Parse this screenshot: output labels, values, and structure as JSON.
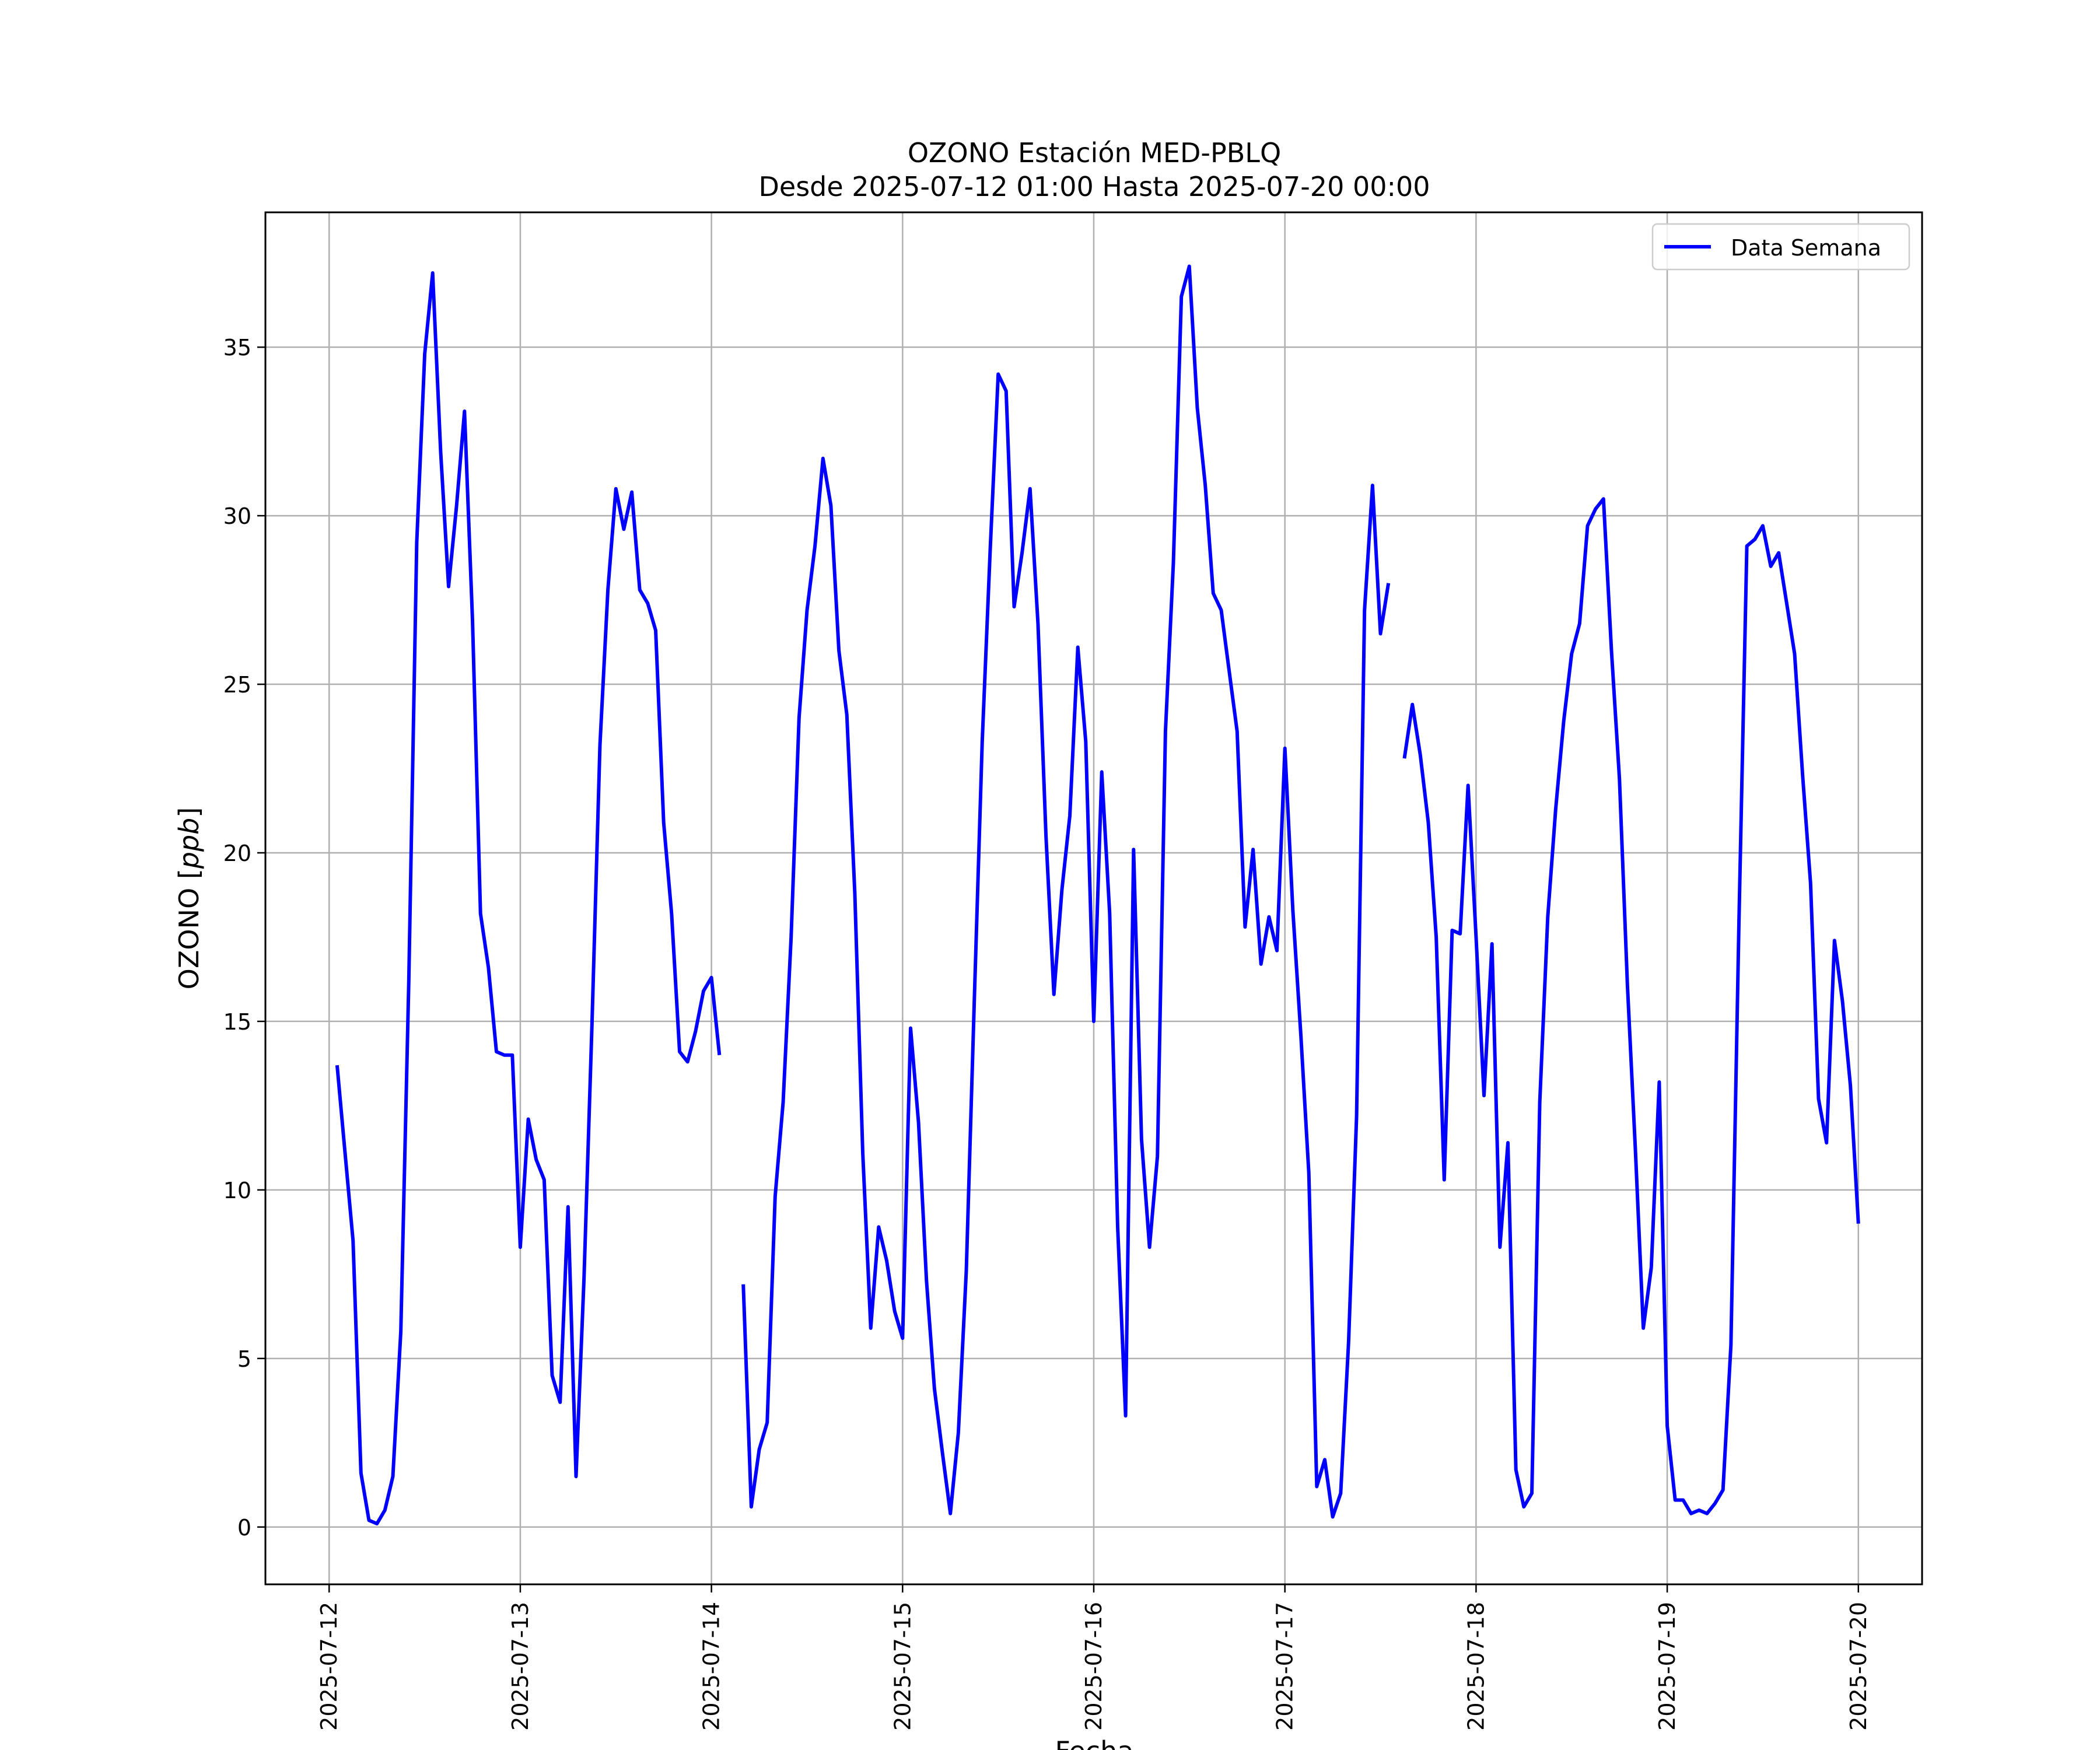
{
  "chart_data": {
    "type": "line",
    "title_line1": "OZONO Estación MED-PBLQ",
    "title_line2": "Desde 2025-07-12 01:00 Hasta 2025-07-20 00:00",
    "xlabel": "Fecha",
    "ylabel": "OZONO [ppb]",
    "ylabel_prefix": "OZONO [",
    "ylabel_unit": "ppb",
    "ylabel_suffix": "]",
    "xlim": [
      "2025-07-11 16:00",
      "2025-07-20 08:00"
    ],
    "ylim": [
      -1.7,
      39
    ],
    "x_ticks": [
      "2025-07-12",
      "2025-07-13",
      "2025-07-14",
      "2025-07-15",
      "2025-07-16",
      "2025-07-17",
      "2025-07-18",
      "2025-07-19",
      "2025-07-20"
    ],
    "y_ticks": [
      0,
      5,
      10,
      15,
      20,
      25,
      30,
      35
    ],
    "grid": true,
    "legend_position": "upper right",
    "series": [
      {
        "name": "Data Semana",
        "color": "#0000ff",
        "segments": [
          {
            "start": "2025-07-12 01:00",
            "values": [
              13.7,
              11.1,
              8.5,
              1.6,
              0.2,
              0.1,
              0.5,
              1.5,
              5.8,
              16.2,
              29.2,
              34.8,
              37.2,
              31.9,
              27.9,
              30.3,
              33.1,
              26.9,
              18.2,
              16.6,
              14.1,
              14.0,
              14.0,
              8.3,
              12.1,
              10.9,
              10.3,
              4.5,
              3.7,
              9.5,
              1.5,
              7.4,
              14.9,
              23.2,
              27.8,
              30.8,
              29.6,
              30.7,
              27.8,
              27.4,
              26.6,
              20.9,
              18.2,
              14.1,
              13.8,
              14.7,
              15.9,
              16.3,
              14.0
            ]
          },
          {
            "start": "2025-07-14 04:00",
            "values": [
              7.2,
              0.6,
              2.3,
              3.1,
              9.8,
              12.6,
              17.5,
              24.0,
              27.2,
              29.1,
              31.7,
              30.3,
              26.0,
              24.1,
              18.8,
              11.1,
              5.9,
              8.9,
              7.9,
              6.4,
              5.6,
              14.8,
              12.0,
              7.3,
              4.1,
              2.2,
              0.4,
              2.8,
              7.6,
              15.6,
              23.3,
              29.0,
              34.2,
              33.7,
              27.3,
              28.9,
              30.8,
              26.8,
              20.5,
              15.8,
              18.9,
              21.1,
              26.1,
              23.3,
              15.0,
              22.4,
              18.2,
              8.9,
              3.3,
              20.1,
              11.5,
              8.3,
              11.0,
              23.6,
              28.6,
              36.5,
              37.4,
              33.2,
              30.9,
              27.7,
              27.2,
              25.4,
              23.6,
              17.8,
              20.1,
              16.7,
              18.1,
              17.1,
              23.1,
              18.3,
              14.6,
              10.5,
              1.2,
              2.0,
              0.3,
              1.0,
              5.5,
              12.2,
              27.2,
              30.9,
              26.5,
              28.0
            ]
          },
          {
            "start": "2025-07-17 15:00",
            "values": [
              22.8,
              24.4,
              22.9,
              20.9,
              17.5,
              10.3,
              17.7,
              17.6,
              22.0,
              17.5,
              12.8,
              17.3,
              8.3,
              11.4,
              1.7,
              0.6,
              1.0,
              12.6,
              18.1,
              21.3,
              23.9,
              25.9,
              26.8,
              29.7,
              30.2,
              30.5,
              26.0,
              22.2,
              16.1,
              11.2,
              5.9,
              7.7,
              13.2,
              3.0,
              0.8,
              0.8,
              0.4,
              0.5,
              0.4,
              0.7,
              1.1,
              5.4,
              17.9,
              29.1,
              29.3,
              29.7,
              28.5,
              28.9,
              27.4,
              25.9,
              22.3,
              19.1,
              12.7,
              11.4,
              17.4,
              15.6,
              13.1,
              9.0
            ]
          }
        ]
      }
    ]
  }
}
